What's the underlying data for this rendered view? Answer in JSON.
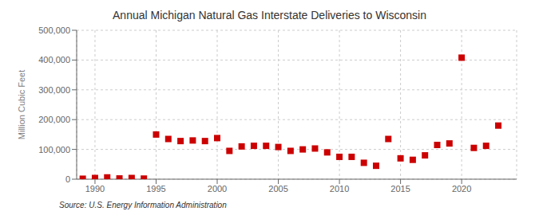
{
  "chart_data": {
    "type": "scatter",
    "title": "Annual Michigan Natural Gas Interstate Deliveries to Wisconsin",
    "ylabel": "Million Cubic Feet",
    "annotation": "Source: U.S. Energy Information Administration",
    "x": [
      1989,
      1990,
      1991,
      1992,
      1993,
      1994,
      1995,
      1996,
      1997,
      1998,
      1999,
      2000,
      2001,
      2002,
      2003,
      2004,
      2005,
      2006,
      2007,
      2008,
      2009,
      2010,
      2011,
      2012,
      2013,
      2014,
      2015,
      2016,
      2017,
      2018,
      2019,
      2020,
      2021,
      2022,
      2023
    ],
    "values": [
      1500,
      4000,
      6000,
      2500,
      4000,
      2000,
      150000,
      135000,
      128000,
      130000,
      128000,
      138000,
      95000,
      110000,
      112000,
      112000,
      108000,
      95000,
      100000,
      103000,
      90000,
      75000,
      75000,
      55000,
      45000,
      135000,
      70000,
      65000,
      80000,
      115000,
      120000,
      408000,
      105000,
      112000,
      180000
    ],
    "color": "#cc0000",
    "marker": "square",
    "xlim": [
      1988.5,
      2024.5
    ],
    "ylim": [
      0,
      500000
    ],
    "xticks": [
      1990,
      1995,
      2000,
      2005,
      2010,
      2015,
      2020
    ],
    "yticks": [
      0,
      {
        "value": 100000,
        "label": "100,000"
      },
      {
        "value": 200000,
        "label": "200,000"
      },
      {
        "value": 300000,
        "label": "300,000"
      },
      {
        "value": 400000,
        "label": "400,000"
      },
      {
        "value": 500000,
        "label": "500,000"
      }
    ],
    "grid": true
  }
}
